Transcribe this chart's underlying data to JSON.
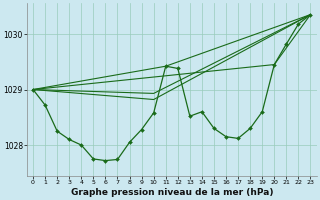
{
  "background_color": "#cce8f0",
  "grid_color": "#99ccbb",
  "line_color": "#1a6b1a",
  "marker_color": "#1a6b1a",
  "title": "Graphe pression niveau de la mer (hPa)",
  "xlim": [
    -0.5,
    23.5
  ],
  "ylim": [
    1027.45,
    1030.55
  ],
  "yticks": [
    1028,
    1029,
    1030
  ],
  "xticks": [
    0,
    1,
    2,
    3,
    4,
    5,
    6,
    7,
    8,
    9,
    10,
    11,
    12,
    13,
    14,
    15,
    16,
    17,
    18,
    19,
    20,
    21,
    22,
    23
  ],
  "main_series": {
    "x": [
      0,
      1,
      2,
      3,
      4,
      5,
      6,
      7,
      8,
      9,
      10,
      11,
      12,
      13,
      14,
      15,
      16,
      17,
      18,
      19,
      20,
      21,
      22,
      23
    ],
    "y": [
      1029.0,
      1028.72,
      1028.25,
      1028.1,
      1028.0,
      1027.75,
      1027.72,
      1027.74,
      1028.05,
      1028.28,
      1028.58,
      1029.42,
      1029.38,
      1028.52,
      1028.6,
      1028.3,
      1028.15,
      1028.12,
      1028.3,
      1028.6,
      1029.45,
      1029.82,
      1030.18,
      1030.35
    ]
  },
  "trend_lines": [
    {
      "x": [
        0,
        11,
        23
      ],
      "y": [
        1029.0,
        1029.42,
        1030.35
      ]
    },
    {
      "x": [
        0,
        10,
        23
      ],
      "y": [
        1029.0,
        1028.82,
        1030.35
      ]
    },
    {
      "x": [
        0,
        10,
        23
      ],
      "y": [
        1029.0,
        1028.93,
        1030.35
      ]
    },
    {
      "x": [
        0,
        20,
        23
      ],
      "y": [
        1029.0,
        1029.45,
        1030.35
      ]
    }
  ]
}
